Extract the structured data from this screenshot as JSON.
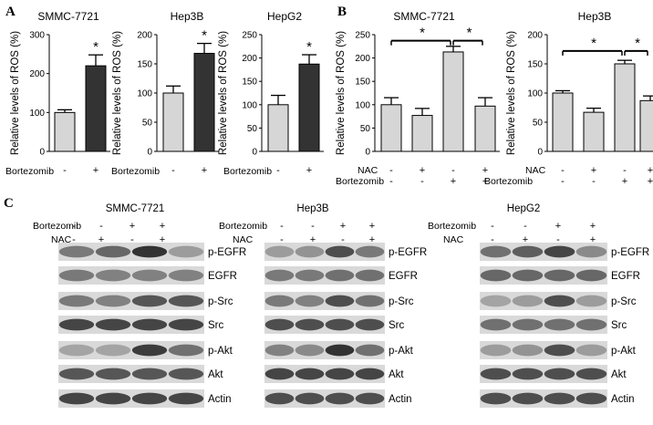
{
  "colors": {
    "light_bar": "#d6d6d6",
    "dark_bar": "#333333",
    "blot_bg": "#d9d9d9",
    "band": "#2a2a2a"
  },
  "panel_labels": [
    "A",
    "B",
    "C"
  ],
  "chart_data": [
    {
      "type": "bar",
      "panel": "A",
      "title": "SMMC-7721",
      "ylabel": "Relative levels of ROS (%)",
      "ylim": [
        0,
        300
      ],
      "yticks": [
        0,
        100,
        200,
        300
      ],
      "categories": [
        "-",
        "+"
      ],
      "condition_labels": [
        "Bortezomib"
      ],
      "conditions": [
        [
          "-",
          "+"
        ]
      ],
      "values": [
        100,
        220
      ],
      "errors": [
        7,
        28
      ],
      "bar_colors": [
        "light",
        "dark"
      ],
      "annotations": [
        {
          "text": "*",
          "bar": 1
        }
      ],
      "grid": false
    },
    {
      "type": "bar",
      "panel": "A",
      "title": "Hep3B",
      "ylabel": "Relative levels of ROS (%)",
      "ylim": [
        0,
        200
      ],
      "yticks": [
        0,
        50,
        100,
        150,
        200
      ],
      "categories": [
        "-",
        "+"
      ],
      "condition_labels": [
        "Bortezomib"
      ],
      "conditions": [
        [
          "-",
          "+"
        ]
      ],
      "values": [
        100,
        168
      ],
      "errors": [
        12,
        17
      ],
      "bar_colors": [
        "light",
        "dark"
      ],
      "annotations": [
        {
          "text": "*",
          "bar": 1
        }
      ],
      "grid": false
    },
    {
      "type": "bar",
      "panel": "A",
      "title": "HepG2",
      "ylabel": "Relative levels of ROS (%)",
      "ylim": [
        0,
        250
      ],
      "yticks": [
        0,
        50,
        100,
        150,
        200,
        250
      ],
      "categories": [
        "-",
        "+"
      ],
      "condition_labels": [
        "Bortezomib"
      ],
      "conditions": [
        [
          "-",
          "+"
        ]
      ],
      "values": [
        100,
        187
      ],
      "errors": [
        20,
        20
      ],
      "bar_colors": [
        "light",
        "dark"
      ],
      "annotations": [
        {
          "text": "*",
          "bar": 1
        }
      ],
      "grid": false
    },
    {
      "type": "bar",
      "panel": "B",
      "title": "SMMC-7721",
      "ylabel": "Relative levels of ROS (%)",
      "ylim": [
        0,
        250
      ],
      "yticks": [
        0,
        50,
        100,
        150,
        200,
        250
      ],
      "categories": [
        "-/-",
        "+/-",
        "-/+",
        "+/+"
      ],
      "condition_labels": [
        "NAC",
        "Bortezomib"
      ],
      "conditions": [
        [
          "-",
          "+",
          "-",
          "+"
        ],
        [
          "-",
          "-",
          "+",
          "+"
        ]
      ],
      "values": [
        100,
        77,
        213,
        97
      ],
      "errors": [
        15,
        15,
        12,
        18
      ],
      "bar_colors": [
        "light",
        "light",
        "light",
        "light"
      ],
      "brackets": [
        {
          "from": 0,
          "to": 2,
          "value": 237,
          "text": "*"
        },
        {
          "from": 2,
          "to": 3,
          "value": 237,
          "text": "*"
        }
      ],
      "grid": false
    },
    {
      "type": "bar",
      "panel": "B",
      "title": "Hep3B",
      "ylabel": "Relative levels of ROS (%)",
      "ylim": [
        0,
        200
      ],
      "yticks": [
        0,
        50,
        100,
        150,
        200
      ],
      "categories": [
        "-/-",
        "+/-",
        "-/+",
        "+/+"
      ],
      "condition_labels": [
        "NAC",
        "Bortezomib"
      ],
      "conditions": [
        [
          "-",
          "+",
          "-",
          "+"
        ],
        [
          "-",
          "-",
          "+",
          "+"
        ]
      ],
      "values": [
        100,
        67,
        150,
        87
      ],
      "errors": [
        4,
        7,
        6,
        8
      ],
      "bar_colors": [
        "light",
        "light",
        "light",
        "light"
      ],
      "brackets": [
        {
          "from": 0,
          "to": 2,
          "value": 172,
          "text": "*"
        },
        {
          "from": 2,
          "to": 3,
          "value": 172,
          "text": "*"
        }
      ],
      "grid": false
    }
  ],
  "western_blots": [
    {
      "title": "SMMC-7721",
      "treatments": [
        {
          "label": "Bortezomib",
          "signs": [
            "-",
            "-",
            "+",
            "+"
          ]
        },
        {
          "label": "NAC",
          "signs": [
            "-",
            "+",
            "-",
            "+"
          ]
        }
      ],
      "bands": [
        {
          "label": "p-EGFR",
          "intensity": [
            0.55,
            0.65,
            0.95,
            0.35
          ]
        },
        {
          "label": "EGFR",
          "intensity": [
            0.55,
            0.5,
            0.5,
            0.5
          ]
        },
        {
          "label": "p-Src",
          "intensity": [
            0.55,
            0.5,
            0.75,
            0.75
          ]
        },
        {
          "label": "Src",
          "intensity": [
            0.85,
            0.85,
            0.85,
            0.85
          ]
        },
        {
          "label": "p-Akt",
          "intensity": [
            0.3,
            0.3,
            0.9,
            0.6
          ]
        },
        {
          "label": "Akt",
          "intensity": [
            0.75,
            0.75,
            0.75,
            0.75
          ]
        },
        {
          "label": "Actin",
          "intensity": [
            0.85,
            0.85,
            0.85,
            0.85
          ]
        }
      ]
    },
    {
      "title": "Hep3B",
      "treatments": [
        {
          "label": "Bortezomib",
          "signs": [
            "-",
            "-",
            "+",
            "+"
          ]
        },
        {
          "label": "NAC",
          "signs": [
            "-",
            "+",
            "-",
            "+"
          ]
        }
      ],
      "bands": [
        {
          "label": "p-EGFR",
          "intensity": [
            0.35,
            0.4,
            0.8,
            0.55
          ]
        },
        {
          "label": "EGFR",
          "intensity": [
            0.55,
            0.55,
            0.6,
            0.6
          ]
        },
        {
          "label": "p-Src",
          "intensity": [
            0.55,
            0.5,
            0.8,
            0.6
          ]
        },
        {
          "label": "Src",
          "intensity": [
            0.8,
            0.8,
            0.8,
            0.8
          ]
        },
        {
          "label": "p-Akt",
          "intensity": [
            0.5,
            0.45,
            0.95,
            0.6
          ]
        },
        {
          "label": "Akt",
          "intensity": [
            0.85,
            0.85,
            0.85,
            0.85
          ]
        },
        {
          "label": "Actin",
          "intensity": [
            0.8,
            0.8,
            0.8,
            0.8
          ]
        }
      ]
    },
    {
      "title": "HepG2",
      "treatments": [
        {
          "label": "Bortezomib",
          "signs": [
            "-",
            "-",
            "+",
            "+"
          ]
        },
        {
          "label": "NAC",
          "signs": [
            "-",
            "+",
            "-",
            "+"
          ]
        }
      ],
      "bands": [
        {
          "label": "p-EGFR",
          "intensity": [
            0.6,
            0.7,
            0.85,
            0.45
          ]
        },
        {
          "label": "EGFR",
          "intensity": [
            0.65,
            0.65,
            0.65,
            0.65
          ]
        },
        {
          "label": "p-Src",
          "intensity": [
            0.3,
            0.35,
            0.8,
            0.35
          ]
        },
        {
          "label": "Src",
          "intensity": [
            0.6,
            0.6,
            0.6,
            0.6
          ]
        },
        {
          "label": "p-Akt",
          "intensity": [
            0.35,
            0.4,
            0.8,
            0.35
          ]
        },
        {
          "label": "Akt",
          "intensity": [
            0.8,
            0.8,
            0.8,
            0.8
          ]
        },
        {
          "label": "Actin",
          "intensity": [
            0.8,
            0.8,
            0.8,
            0.8
          ]
        }
      ]
    }
  ]
}
